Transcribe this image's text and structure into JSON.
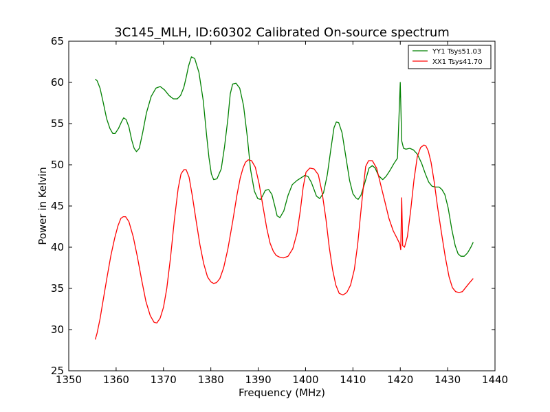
{
  "chart_data": {
    "type": "line",
    "title": "3C145_MLH, ID:60302 Calibrated On-source spectrum",
    "xlabel": "Frequency (MHz)",
    "ylabel": "Power in Kelvin",
    "xlim": [
      1350,
      1440
    ],
    "ylim": [
      25,
      65
    ],
    "xticks": [
      1350,
      1360,
      1370,
      1380,
      1390,
      1400,
      1410,
      1420,
      1430,
      1440
    ],
    "yticks": [
      25,
      30,
      35,
      40,
      45,
      50,
      55,
      60,
      65
    ],
    "grid": false,
    "legend_position": "top-right",
    "series": [
      {
        "name": "YY1 Tsys51.03",
        "color": "#008000",
        "x": [
          1355.6,
          1356.0,
          1356.6,
          1357.3,
          1358.0,
          1358.7,
          1359.3,
          1359.8,
          1360.5,
          1361.2,
          1361.6,
          1362.1,
          1362.7,
          1363.3,
          1363.8,
          1364.3,
          1364.9,
          1365.6,
          1366.4,
          1367.4,
          1368.4,
          1369.3,
          1370.2,
          1371.2,
          1372.1,
          1372.9,
          1373.6,
          1374.3,
          1374.8,
          1375.3,
          1375.9,
          1376.6,
          1377.5,
          1378.4,
          1379.1,
          1379.6,
          1380.1,
          1380.6,
          1381.3,
          1382.2,
          1382.9,
          1383.6,
          1384.1,
          1384.6,
          1385.3,
          1386.1,
          1386.9,
          1387.7,
          1388.4,
          1389.2,
          1389.9,
          1390.5,
          1391.0,
          1391.5,
          1392.2,
          1392.9,
          1393.5,
          1394.0,
          1394.6,
          1395.4,
          1396.3,
          1397.2,
          1398.2,
          1399.0,
          1399.8,
          1400.5,
          1401.2,
          1401.8,
          1402.3,
          1403.0,
          1403.8,
          1404.6,
          1405.4,
          1406.0,
          1406.5,
          1407.0,
          1407.7,
          1408.5,
          1409.3,
          1410.0,
          1410.6,
          1411.1,
          1411.7,
          1412.5,
          1413.4,
          1414.1,
          1414.7,
          1415.4,
          1416.3,
          1417.0,
          1417.8,
          1418.6,
          1419.4,
          1420.0,
          1420.3,
          1420.7,
          1421.2,
          1422.0,
          1422.8,
          1423.6,
          1424.5,
          1425.3,
          1426.0,
          1426.7,
          1427.4,
          1428.2,
          1428.8,
          1429.4,
          1430.1,
          1430.9,
          1431.6,
          1432.2,
          1432.8,
          1433.5,
          1434.2,
          1434.9,
          1435.4
        ],
        "y": [
          60.4,
          60.2,
          59.3,
          57.5,
          55.6,
          54.4,
          53.8,
          53.8,
          54.4,
          55.3,
          55.7,
          55.5,
          54.6,
          53.0,
          52.0,
          51.6,
          52.0,
          53.9,
          56.3,
          58.3,
          59.3,
          59.5,
          59.1,
          58.4,
          58.0,
          58.0,
          58.4,
          59.4,
          60.6,
          62.0,
          63.1,
          62.9,
          61.2,
          57.8,
          53.6,
          50.9,
          48.9,
          48.2,
          48.3,
          49.5,
          52.2,
          55.6,
          58.6,
          59.8,
          59.9,
          59.3,
          57.2,
          53.4,
          49.4,
          46.8,
          45.9,
          45.8,
          46.3,
          46.9,
          47.0,
          46.4,
          45.0,
          43.8,
          43.6,
          44.4,
          46.3,
          47.6,
          48.1,
          48.4,
          48.7,
          48.6,
          47.9,
          47.0,
          46.2,
          45.9,
          46.6,
          48.8,
          52.1,
          54.5,
          55.2,
          55.1,
          53.9,
          51.0,
          48.1,
          46.5,
          46.0,
          45.8,
          46.3,
          47.8,
          49.6,
          49.9,
          49.6,
          48.7,
          48.2,
          48.6,
          49.3,
          50.1,
          50.8,
          60.0,
          52.9,
          52.0,
          51.9,
          52.0,
          51.8,
          51.3,
          50.2,
          48.9,
          47.9,
          47.4,
          47.3,
          47.3,
          47.0,
          46.4,
          44.8,
          42.1,
          40.2,
          39.2,
          38.9,
          38.9,
          39.3,
          40.0,
          40.6
        ]
      },
      {
        "name": "XX1 Tsys41.70",
        "color": "#ff0000",
        "x": [
          1355.6,
          1356.0,
          1356.6,
          1357.3,
          1358.1,
          1358.9,
          1359.7,
          1360.4,
          1361.0,
          1361.5,
          1362.0,
          1362.7,
          1363.6,
          1364.5,
          1365.4,
          1366.3,
          1367.2,
          1368.0,
          1368.6,
          1369.3,
          1370.0,
          1370.7,
          1371.5,
          1372.3,
          1373.1,
          1373.7,
          1374.3,
          1374.8,
          1375.4,
          1376.1,
          1376.9,
          1377.7,
          1378.5,
          1379.3,
          1380.0,
          1380.6,
          1381.2,
          1381.9,
          1382.7,
          1383.6,
          1384.6,
          1385.5,
          1386.2,
          1386.8,
          1387.3,
          1387.9,
          1388.6,
          1389.4,
          1390.2,
          1391.0,
          1391.8,
          1392.5,
          1393.2,
          1393.8,
          1394.5,
          1395.3,
          1396.3,
          1397.3,
          1398.2,
          1398.9,
          1399.5,
          1400.1,
          1400.9,
          1401.8,
          1402.7,
          1403.5,
          1404.3,
          1405.0,
          1405.7,
          1406.4,
          1407.1,
          1407.9,
          1408.7,
          1409.5,
          1410.3,
          1411.0,
          1411.6,
          1412.2,
          1412.7,
          1413.3,
          1414.1,
          1415.0,
          1415.9,
          1416.8,
          1417.6,
          1418.5,
          1419.3,
          1419.9,
          1420.1,
          1420.3,
          1420.5,
          1420.9,
          1421.5,
          1422.2,
          1422.9,
          1423.6,
          1424.3,
          1425.0,
          1425.4,
          1425.9,
          1426.5,
          1427.2,
          1427.9,
          1428.7,
          1429.5,
          1430.3,
          1431.0,
          1431.7,
          1432.4,
          1433.1,
          1433.8,
          1434.5,
          1435.4
        ],
        "y": [
          28.8,
          29.6,
          31.3,
          33.7,
          36.4,
          39.0,
          41.1,
          42.6,
          43.5,
          43.7,
          43.7,
          43.1,
          41.3,
          38.8,
          36.0,
          33.4,
          31.7,
          30.9,
          30.8,
          31.4,
          32.7,
          35.0,
          38.8,
          43.3,
          47.1,
          48.9,
          49.4,
          49.4,
          48.5,
          46.2,
          43.2,
          40.3,
          38.0,
          36.4,
          35.8,
          35.6,
          35.7,
          36.2,
          37.5,
          39.8,
          43.1,
          46.3,
          48.4,
          49.6,
          50.3,
          50.6,
          50.5,
          49.7,
          47.7,
          45.0,
          42.3,
          40.5,
          39.5,
          39.0,
          38.8,
          38.7,
          38.9,
          39.8,
          41.7,
          44.5,
          47.3,
          49.1,
          49.6,
          49.5,
          48.8,
          46.6,
          43.4,
          40.0,
          37.3,
          35.4,
          34.4,
          34.2,
          34.5,
          35.4,
          37.3,
          40.3,
          43.9,
          47.3,
          49.8,
          50.5,
          50.5,
          49.6,
          47.5,
          45.4,
          43.5,
          42.0,
          41.1,
          40.4,
          39.7,
          46.0,
          40.2,
          40.0,
          41.3,
          44.5,
          48.2,
          51.0,
          52.1,
          52.4,
          52.3,
          51.7,
          50.3,
          47.8,
          44.8,
          41.7,
          38.8,
          36.4,
          35.1,
          34.6,
          34.5,
          34.6,
          35.1,
          35.6,
          36.2
        ]
      }
    ]
  }
}
